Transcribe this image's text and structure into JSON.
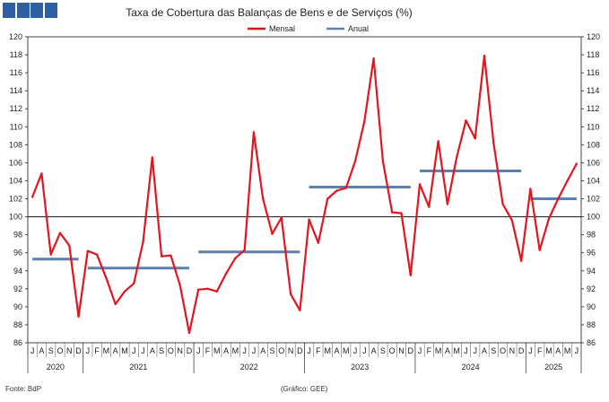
{
  "chart_data": {
    "type": "line",
    "title": "Taxa de Cobertura das Balanças de Bens e de Serviços (%)",
    "ylim": [
      86,
      120
    ],
    "y_ticks": [
      86,
      88,
      90,
      92,
      94,
      96,
      98,
      100,
      102,
      104,
      106,
      108,
      110,
      112,
      114,
      116,
      118,
      120
    ],
    "grid": false,
    "reference_line": 100,
    "legend_position": "top-center",
    "months": [
      "J",
      "A",
      "S",
      "O",
      "N",
      "D",
      "J",
      "F",
      "M",
      "A",
      "M",
      "J",
      "J",
      "A",
      "S",
      "O",
      "N",
      "D",
      "J",
      "F",
      "M",
      "A",
      "M",
      "J",
      "J",
      "A",
      "S",
      "O",
      "N",
      "D",
      "J",
      "F",
      "M",
      "A",
      "M",
      "J",
      "J",
      "A",
      "S",
      "O",
      "N",
      "D",
      "J",
      "F",
      "M",
      "A",
      "M",
      "J",
      "J",
      "A",
      "S",
      "O",
      "N",
      "D",
      "J",
      "F",
      "M",
      "A",
      "M",
      "J"
    ],
    "years": [
      {
        "label": "2020",
        "start": 0,
        "end": 5
      },
      {
        "label": "2021",
        "start": 6,
        "end": 17
      },
      {
        "label": "2022",
        "start": 18,
        "end": 29
      },
      {
        "label": "2023",
        "start": 30,
        "end": 41
      },
      {
        "label": "2024",
        "start": 42,
        "end": 53
      },
      {
        "label": "2025",
        "start": 54,
        "end": 59
      }
    ],
    "series": [
      {
        "name": "Mensal",
        "color": "#e3151f",
        "values": [
          102.2,
          104.8,
          95.8,
          98.2,
          96.8,
          88.9,
          96.2,
          95.8,
          93.2,
          90.3,
          91.7,
          92.6,
          97.2,
          106.6,
          95.6,
          95.7,
          92.4,
          87.1,
          91.9,
          92.0,
          91.7,
          93.7,
          95.4,
          96.3,
          109.4,
          102.0,
          98.1,
          99.9,
          91.4,
          89.6,
          99.7,
          97.1,
          102.0,
          102.9,
          103.2,
          106.2,
          110.6,
          117.6,
          106.2,
          100.5,
          100.4,
          93.5,
          103.6,
          101.1,
          108.4,
          101.4,
          106.6,
          110.7,
          108.7,
          117.9,
          108.2,
          101.4,
          99.6,
          95.1,
          103.1,
          96.3,
          99.8,
          102.0,
          104.0,
          105.9
        ]
      },
      {
        "name": "Anual",
        "color": "#5b7fae",
        "segments": [
          {
            "year": "2020",
            "start": 0,
            "end": 5,
            "value": 95.3
          },
          {
            "year": "2021",
            "start": 6,
            "end": 17,
            "value": 94.3
          },
          {
            "year": "2022",
            "start": 18,
            "end": 29,
            "value": 96.1
          },
          {
            "year": "2023",
            "start": 30,
            "end": 41,
            "value": 103.3
          },
          {
            "year": "2024",
            "start": 42,
            "end": 53,
            "value": 105.1
          },
          {
            "year": "2025",
            "start": 54,
            "end": 59,
            "value": 102.0
          }
        ]
      }
    ]
  },
  "footer": {
    "source": "Fonte: BdP",
    "credit": "(Gráfico: GEE)"
  },
  "logo": {
    "color": "#2e5fa3",
    "blocks": 4
  }
}
